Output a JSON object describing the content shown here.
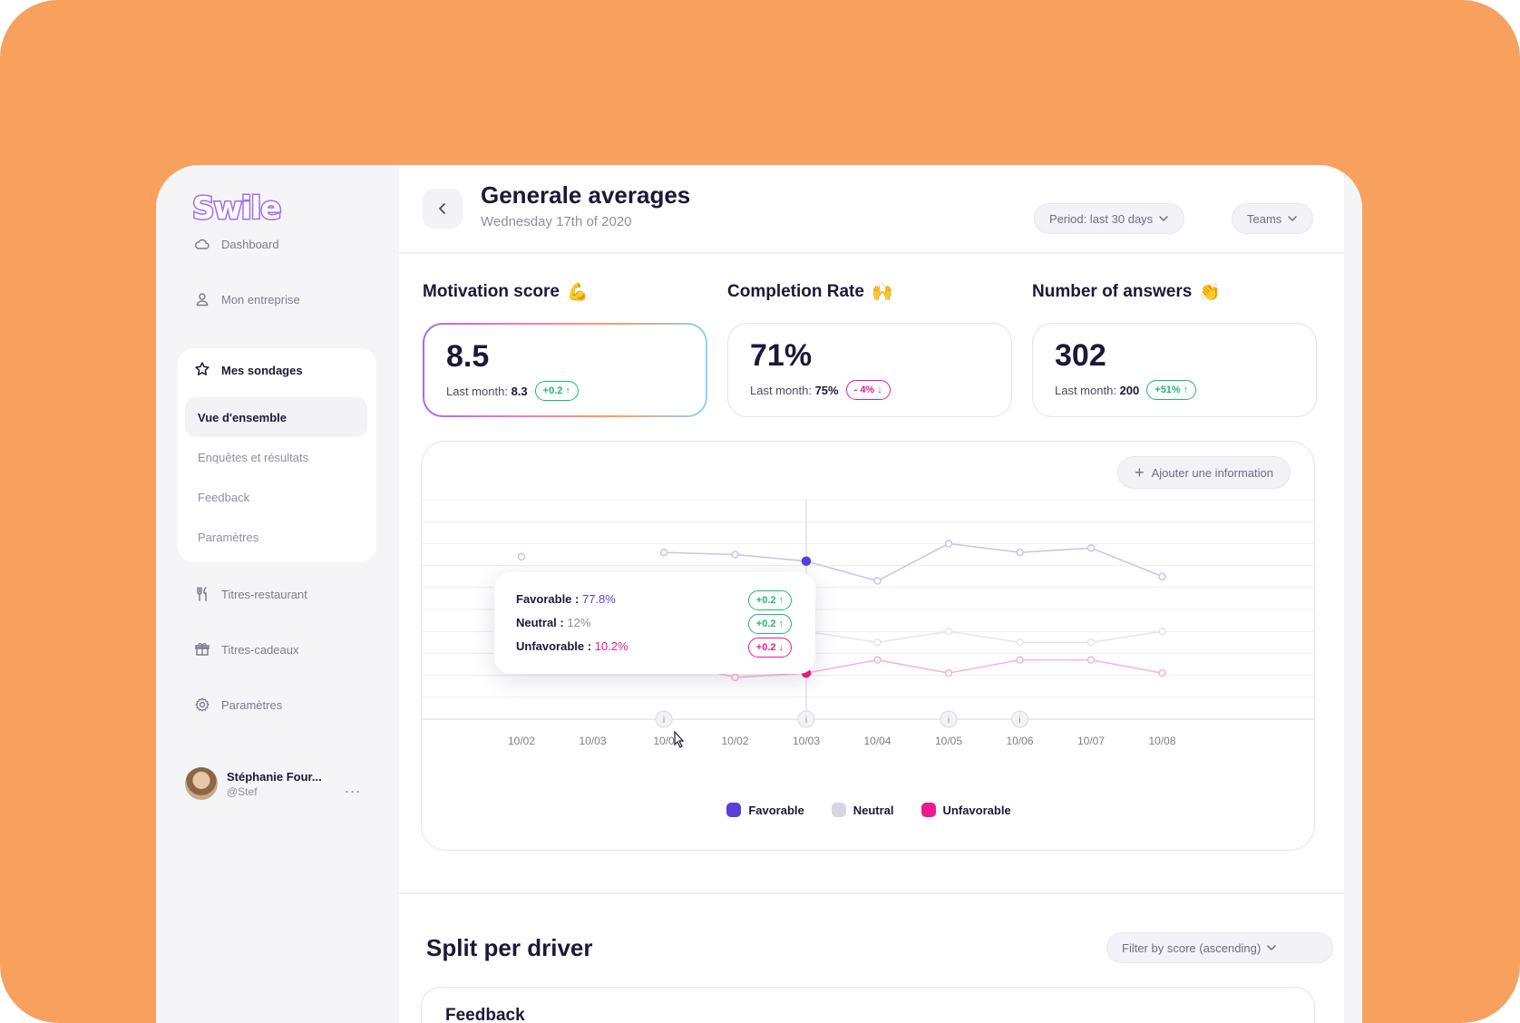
{
  "app": {
    "logo_text": "Swile"
  },
  "sidebar": {
    "items": [
      {
        "label": "Dashboard",
        "icon": "cloud-icon"
      },
      {
        "label": "Mon entreprise",
        "icon": "user-icon"
      },
      {
        "label": "Titres-restaurant",
        "icon": "cutlery-icon"
      },
      {
        "label": "Titres-cadeaux",
        "icon": "gift-icon"
      },
      {
        "label": "Paramètres",
        "icon": "gear-icon"
      }
    ],
    "group": {
      "label": "Mes sondages",
      "icon": "star-icon",
      "subitems": [
        "Vue d'ensemble",
        "Enquêtes et résultats",
        "Feedback",
        "Paramètres"
      ],
      "active": "Vue d'ensemble"
    },
    "profile": {
      "name": "Stéphanie Four...",
      "handle": "@Stef",
      "menu": "..."
    }
  },
  "header": {
    "title": "Generale averages",
    "subtitle": "Wednesday 17th of 2020",
    "period_filter": "Period: last 30 days",
    "team_filter": "Teams"
  },
  "kpis": [
    {
      "title": "Motivation score",
      "emoji": "💪",
      "value": "8.5",
      "last_label": "Last month:",
      "last_value": "8.3",
      "delta": "+0.2",
      "trend": "up"
    },
    {
      "title": "Completion Rate",
      "emoji": "🙌",
      "value": "71%",
      "last_label": "Last month:",
      "last_value": "75%",
      "delta": "- 4%",
      "trend": "down"
    },
    {
      "title": "Number of answers",
      "emoji": "👏",
      "value": "302",
      "last_label": "Last month:",
      "last_value": "200",
      "delta": "+51%",
      "trend": "up"
    }
  ],
  "chart_section": {
    "add_button": "Ajouter une information",
    "tooltip": {
      "rows": [
        {
          "label": "Favorable :",
          "value": "77.8%",
          "delta": "+0.2",
          "trend": "up"
        },
        {
          "label": "Neutral :",
          "value": "12%",
          "delta": "+0.2",
          "trend": "up"
        },
        {
          "label": "Unfavorable :",
          "value": "10.2%",
          "delta": "+0.2",
          "trend": "down"
        }
      ]
    },
    "info_marker": "i"
  },
  "chart_data": {
    "type": "line",
    "categories": [
      "10/02",
      "10/03",
      "10/0",
      "10/02",
      "10/03",
      "10/04",
      "10/05",
      "10/06",
      "10/07",
      "10/08"
    ],
    "series": [
      {
        "name": "Favorable",
        "color": "#5B3FD9",
        "values": [
          7.4,
          null,
          7.6,
          7.5,
          7.2,
          6.3,
          8.0,
          7.6,
          7.8,
          6.5
        ]
      },
      {
        "name": "Neutral",
        "color": "#D7D6E0",
        "values": [
          null,
          null,
          null,
          null,
          4.0,
          3.5,
          4.0,
          3.5,
          3.5,
          4.0
        ]
      },
      {
        "name": "Unfavorable",
        "color": "#EC1A8E",
        "values": [
          2.7,
          2.4,
          2.7,
          1.9,
          2.1,
          2.7,
          2.1,
          2.7,
          2.7,
          2.1
        ]
      }
    ],
    "highlight_index": 4,
    "info_marker_indices": [
      2,
      4,
      6,
      7
    ],
    "ylim": [
      0,
      10
    ],
    "grid": true,
    "legend_position": "bottom-center"
  },
  "legend": [
    {
      "label": "Favorable",
      "color": "#5B3FD9"
    },
    {
      "label": "Neutral",
      "color": "#D7D6E0"
    },
    {
      "label": "Unfavorable",
      "color": "#EC1A8E"
    }
  ],
  "split": {
    "title": "Split per driver",
    "filter": "Filter by score (ascending)",
    "card_title": "Feedback"
  }
}
